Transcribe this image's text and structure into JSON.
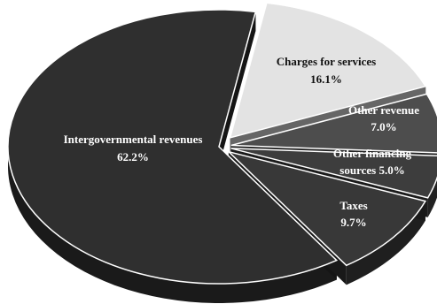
{
  "chart_data": {
    "type": "pie",
    "title": "",
    "slices": [
      {
        "label": "Intergovernmental revenues",
        "value": 62.2,
        "value_text": "62.2%",
        "color": "#2f2f2f",
        "text_color": "#ffffff"
      },
      {
        "label": "Charges for services",
        "value": 16.1,
        "value_text": "16.1%",
        "color": "#e3e3e3",
        "text_color": "#111111"
      },
      {
        "label": "Other revenue",
        "value": 7.0,
        "value_text": "7.0%",
        "color": "#4d4d4d",
        "text_color": "#ffffff"
      },
      {
        "label": "Other financing sources",
        "value": 5.0,
        "value_text": "5.0%",
        "color": "#3d3d3d",
        "text_color": "#ffffff"
      },
      {
        "label": "Taxes",
        "value": 9.7,
        "value_text": "9.7%",
        "color": "#383838",
        "text_color": "#ffffff"
      }
    ]
  }
}
